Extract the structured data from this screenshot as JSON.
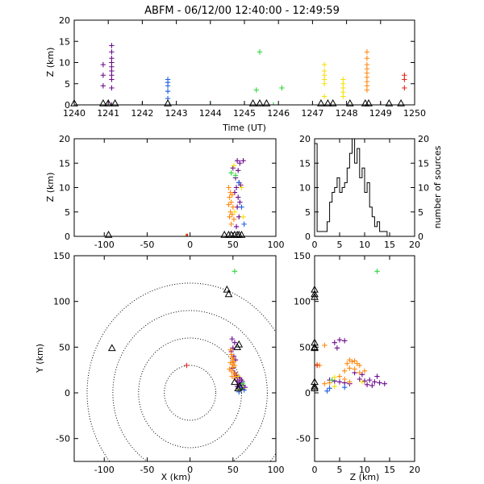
{
  "title": "ABFM - 06/12/00 12:40:00 - 12:49:59",
  "colors": {
    "purple": "#6a0a8c",
    "blue": "#1f5fe0",
    "cyan": "#19c8d8",
    "green": "#2ed63a",
    "yellow": "#f5e10c",
    "orange": "#ff8a12",
    "red": "#e0261c",
    "black": "#000000"
  },
  "chart_data": [
    {
      "id": "time-height",
      "type": "scatter",
      "xlabel": "Time (UT)",
      "ylabel": "Z (km)",
      "xlim": [
        1240,
        1250
      ],
      "ylim": [
        0,
        20
      ],
      "xticks": [
        "1240",
        "1241",
        "1242",
        "1243",
        "1244",
        "1245",
        "1246",
        "1247",
        "1248",
        "1249",
        "1250"
      ],
      "yticks": [
        "0",
        "5",
        "10",
        "15",
        "20"
      ],
      "series": [
        {
          "color": "purple",
          "points": [
            [
              1240.85,
              9.5
            ],
            [
              1240.85,
              7
            ],
            [
              1240.85,
              4.5
            ],
            [
              1241.1,
              14
            ],
            [
              1241.1,
              12.5
            ],
            [
              1241.1,
              11
            ],
            [
              1241.1,
              10
            ],
            [
              1241.1,
              9
            ],
            [
              1241.1,
              8
            ],
            [
              1241.1,
              7
            ],
            [
              1241.1,
              6
            ],
            [
              1241.1,
              4
            ],
            [
              1241.1,
              0
            ],
            [
              1242.0,
              0
            ]
          ]
        },
        {
          "color": "blue",
          "points": [
            [
              1242.75,
              6
            ],
            [
              1242.75,
              5.3
            ],
            [
              1242.75,
              4.5
            ],
            [
              1242.75,
              3.2
            ],
            [
              1242.75,
              1.5
            ],
            [
              1242.8,
              0
            ]
          ]
        },
        {
          "color": "cyan",
          "points": [
            [
              1244.0,
              0
            ]
          ]
        },
        {
          "color": "green",
          "points": [
            [
              1245.0,
              0
            ],
            [
              1245.35,
              3.5
            ],
            [
              1245.45,
              12.5
            ],
            [
              1245.85,
              0
            ],
            [
              1246.1,
              4
            ]
          ]
        },
        {
          "color": "yellow",
          "points": [
            [
              1247.0,
              0
            ],
            [
              1247.35,
              9.5
            ],
            [
              1247.35,
              8
            ],
            [
              1247.35,
              7
            ],
            [
              1247.35,
              6
            ],
            [
              1247.35,
              5
            ],
            [
              1247.35,
              2
            ],
            [
              1247.9,
              6
            ],
            [
              1247.9,
              5
            ],
            [
              1247.9,
              4
            ],
            [
              1247.9,
              3
            ],
            [
              1247.9,
              2
            ]
          ]
        },
        {
          "color": "orange",
          "points": [
            [
              1248.6,
              12.5
            ],
            [
              1248.6,
              11
            ],
            [
              1248.6,
              9.5
            ],
            [
              1248.6,
              8.5
            ],
            [
              1248.6,
              7.5
            ],
            [
              1248.6,
              6.5
            ],
            [
              1248.6,
              5.5
            ],
            [
              1248.6,
              4.5
            ],
            [
              1248.6,
              3.5
            ]
          ]
        },
        {
          "color": "red",
          "points": [
            [
              1249.0,
              0
            ],
            [
              1249.7,
              7
            ],
            [
              1249.7,
              6
            ],
            [
              1249.7,
              4
            ]
          ]
        }
      ],
      "stations_x": [
        1240.0,
        1240.85,
        1241.0,
        1241.2,
        1242.75,
        1245.25,
        1245.45,
        1245.65,
        1247.25,
        1247.45,
        1247.6,
        1248.1,
        1248.55,
        1248.65,
        1249.25,
        1249.6
      ],
      "station_base": 0
    },
    {
      "id": "x-z",
      "type": "scatter",
      "ylabel": "Z (km)",
      "xlim": [
        -135,
        100
      ],
      "ylim": [
        0,
        20
      ],
      "xticks": [
        "-100",
        "-50",
        "0",
        "50",
        "100"
      ],
      "yticks": [
        "0",
        "5",
        "10",
        "15",
        "20"
      ],
      "series": [
        {
          "color": "purple",
          "points": [
            [
              55,
              15.5
            ],
            [
              58,
              15
            ],
            [
              62,
              15.5
            ],
            [
              50,
              14
            ],
            [
              56,
              13.5
            ],
            [
              53,
              12
            ],
            [
              57,
              11
            ],
            [
              54,
              10
            ],
            [
              59,
              10.5
            ],
            [
              52,
              9
            ],
            [
              56,
              8
            ],
            [
              58,
              7
            ],
            [
              55,
              6
            ],
            [
              57,
              4
            ],
            [
              54,
              2
            ]
          ]
        },
        {
          "color": "orange",
          "points": [
            [
              45,
              10
            ],
            [
              47,
              9
            ],
            [
              46,
              8
            ],
            [
              49,
              8.5
            ],
            [
              48,
              7
            ],
            [
              45,
              6.5
            ],
            [
              50,
              6
            ],
            [
              47,
              5
            ],
            [
              46,
              4
            ],
            [
              49,
              4.5
            ],
            [
              51,
              3.5
            ],
            [
              48,
              2.5
            ],
            [
              -5,
              0
            ]
          ]
        },
        {
          "color": "yellow",
          "points": [
            [
              51,
              14.5
            ],
            [
              60,
              10
            ],
            [
              52,
              5
            ],
            [
              62,
              4
            ]
          ]
        },
        {
          "color": "green",
          "points": [
            [
              48,
              13
            ],
            [
              53,
              12.5
            ]
          ]
        },
        {
          "color": "blue",
          "points": [
            [
              57,
              11
            ],
            [
              60,
              6
            ],
            [
              63,
              2.5
            ]
          ]
        },
        {
          "color": "red",
          "points": [
            [
              -4,
              0
            ],
            [
              -3,
              0
            ]
          ]
        }
      ],
      "stations_x": [
        -95,
        40,
        45,
        48,
        52,
        55,
        57,
        60
      ],
      "station_base": 0
    },
    {
      "id": "histogram",
      "type": "bar",
      "ylabel": "number of sources",
      "xlim": [
        0,
        20
      ],
      "ylim": [
        0,
        20
      ],
      "xticks": [
        "0",
        "5",
        "10",
        "15",
        "20"
      ],
      "yticks": [
        "0",
        "5",
        "10",
        "15",
        "20"
      ],
      "bin_width": 0.5,
      "values": [
        19,
        1,
        1,
        1,
        1,
        3,
        7,
        9,
        10,
        12,
        9,
        10,
        11,
        14,
        17,
        20,
        15,
        18,
        12,
        14,
        9,
        11,
        6,
        4,
        2,
        3,
        1,
        1,
        1,
        0,
        0,
        0,
        0,
        0,
        0,
        0,
        0,
        0,
        0,
        0
      ]
    },
    {
      "id": "plan-view",
      "type": "scatter",
      "xlabel": "X (km)",
      "ylabel": "Y (km)",
      "xlim": [
        -135,
        100
      ],
      "ylim": [
        -75,
        150
      ],
      "xticks": [
        "-100",
        "-50",
        "0",
        "50",
        "100"
      ],
      "yticks": [
        "-50",
        "0",
        "50",
        "100",
        "150"
      ],
      "range_rings": [
        30,
        60,
        90,
        120
      ],
      "series": [
        {
          "color": "purple",
          "points": [
            [
              49,
              59
            ],
            [
              52,
              55
            ],
            [
              50,
              49
            ],
            [
              48,
              45
            ],
            [
              51,
              40
            ],
            [
              53,
              36
            ],
            [
              50,
              27
            ],
            [
              52,
              22
            ],
            [
              54,
              19
            ],
            [
              56,
              17
            ],
            [
              58,
              16
            ],
            [
              60,
              14
            ],
            [
              55,
              13
            ],
            [
              57,
              11
            ],
            [
              59,
              10
            ],
            [
              61,
              12
            ],
            [
              62,
              8
            ],
            [
              64,
              6
            ],
            [
              58,
              6
            ],
            [
              55,
              7
            ]
          ]
        },
        {
          "color": "orange",
          "points": [
            [
              47,
              47
            ],
            [
              48,
              42
            ],
            [
              49,
              39
            ],
            [
              50,
              37
            ],
            [
              51,
              34
            ],
            [
              47,
              33
            ],
            [
              49,
              31
            ],
            [
              52,
              30
            ],
            [
              50,
              28
            ],
            [
              46,
              26
            ],
            [
              48,
              24
            ],
            [
              51,
              22
            ],
            [
              53,
              20
            ],
            [
              49,
              18
            ],
            [
              52,
              16
            ]
          ]
        },
        {
          "color": "green",
          "points": [
            [
              52,
              133
            ],
            [
              61,
              10
            ]
          ]
        },
        {
          "color": "yellow",
          "points": [
            [
              56,
              18
            ],
            [
              62,
              5
            ],
            [
              58,
              3
            ]
          ]
        },
        {
          "color": "blue",
          "points": [
            [
              60,
              6
            ],
            [
              63,
              3
            ],
            [
              57,
              1
            ]
          ]
        },
        {
          "color": "red",
          "points": [
            [
              -4,
              30
            ]
          ]
        }
      ],
      "stations": [
        [
          -91,
          49
        ],
        [
          43,
          113
        ],
        [
          45,
          108
        ],
        [
          55,
          50
        ],
        [
          57,
          53
        ],
        [
          52,
          12
        ],
        [
          56,
          5
        ],
        [
          58,
          7
        ]
      ]
    },
    {
      "id": "z-y",
      "type": "scatter",
      "xlabel": "Z (km)",
      "xlim": [
        0,
        20
      ],
      "ylim": [
        -75,
        150
      ],
      "xticks": [
        "0",
        "5",
        "10",
        "15",
        "20"
      ],
      "yticks": [
        "-50",
        "0",
        "50",
        "100",
        "150"
      ],
      "series": [
        {
          "color": "purple",
          "points": [
            [
              4,
              55
            ],
            [
              5,
              58
            ],
            [
              6,
              57
            ],
            [
              4.5,
              49
            ],
            [
              9,
              15
            ],
            [
              10,
              13
            ],
            [
              11,
              14
            ],
            [
              12,
              12
            ],
            [
              13,
              11
            ],
            [
              14,
              10
            ],
            [
              10.5,
              9
            ],
            [
              11.5,
              8
            ],
            [
              3,
              14
            ],
            [
              4,
              13
            ],
            [
              5,
              12
            ],
            [
              6,
              11
            ],
            [
              7,
              10
            ],
            [
              12.5,
              18
            ],
            [
              9.5,
              20
            ],
            [
              8,
              22
            ]
          ]
        },
        {
          "color": "orange",
          "points": [
            [
              2,
              52
            ],
            [
              7,
              36
            ],
            [
              7.5,
              34
            ],
            [
              8,
              35
            ],
            [
              8.5,
              32
            ],
            [
              6.5,
              32
            ],
            [
              9,
              30
            ],
            [
              7,
              27
            ],
            [
              8,
              26
            ],
            [
              6,
              24
            ],
            [
              9,
              22
            ],
            [
              10,
              24
            ],
            [
              5,
              18
            ],
            [
              6,
              15
            ],
            [
              7,
              12
            ],
            [
              2,
              10
            ],
            [
              3,
              11
            ],
            [
              1,
              30
            ],
            [
              0.5,
              31
            ]
          ]
        },
        {
          "color": "green",
          "points": [
            [
              12.5,
              133
            ],
            [
              3.5,
              14
            ]
          ]
        },
        {
          "color": "yellow",
          "points": [
            [
              4,
              17
            ],
            [
              9.5,
              12
            ],
            [
              4,
              7
            ]
          ]
        },
        {
          "color": "blue",
          "points": [
            [
              3,
              5
            ],
            [
              6,
              6
            ],
            [
              2.5,
              2
            ]
          ]
        },
        {
          "color": "red",
          "points": [
            [
              0.5,
              30
            ]
          ]
        }
      ],
      "stations": [
        [
          0,
          113
        ],
        [
          0,
          108
        ],
        [
          0,
          105
        ],
        [
          0,
          55
        ],
        [
          0,
          50
        ],
        [
          0,
          49
        ],
        [
          0,
          12
        ],
        [
          0,
          7
        ],
        [
          0,
          5
        ]
      ]
    }
  ]
}
